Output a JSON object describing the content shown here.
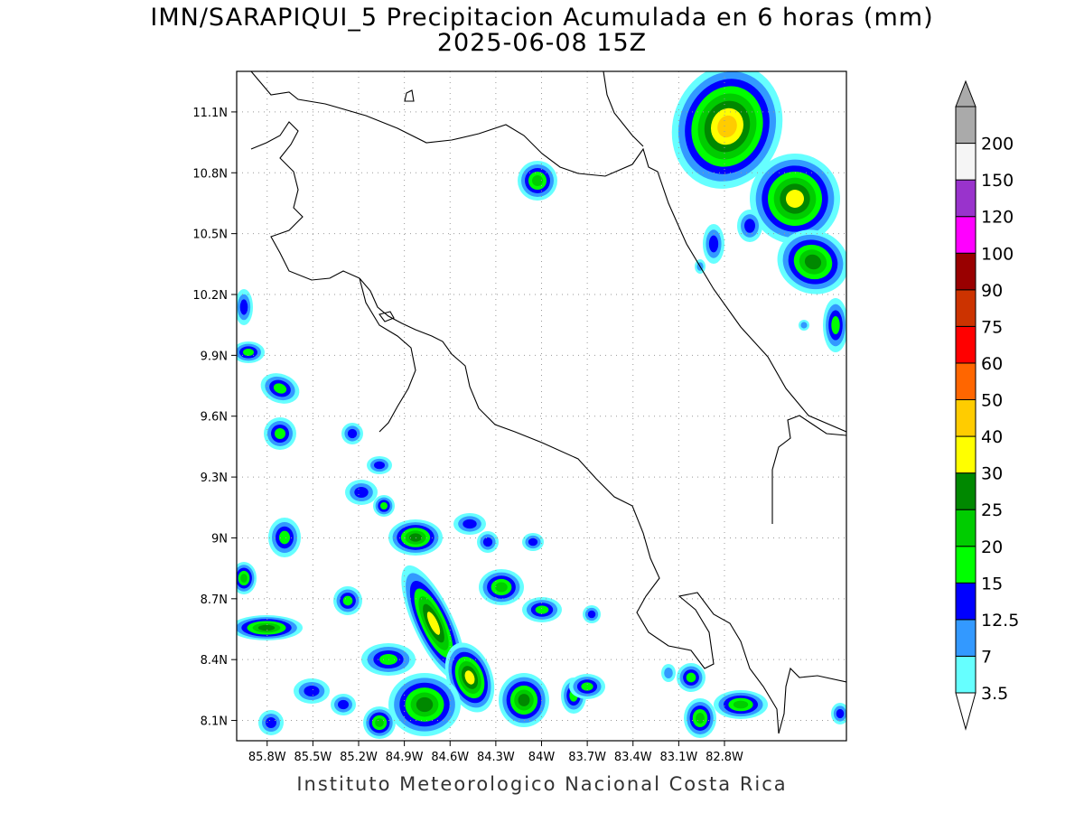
{
  "title": {
    "line1": "IMN/SARAPIQUI_5 Precipitacion Acumulada en 6 horas (mm)",
    "line2": "2025-06-08 15Z"
  },
  "footer": "Instituto Meteorologico Nacional Costa Rica",
  "map": {
    "lon_range": [
      -86.0,
      -82.0
    ],
    "lat_range": [
      8.0,
      11.3
    ],
    "lat_ticks": [
      {
        "value": 8.1,
        "label": "8.1N"
      },
      {
        "value": 8.4,
        "label": "8.4N"
      },
      {
        "value": 8.7,
        "label": "8.7N"
      },
      {
        "value": 9.0,
        "label": "9N"
      },
      {
        "value": 9.3,
        "label": "9.3N"
      },
      {
        "value": 9.6,
        "label": "9.6N"
      },
      {
        "value": 9.9,
        "label": "9.9N"
      },
      {
        "value": 10.2,
        "label": "10.2N"
      },
      {
        "value": 10.5,
        "label": "10.5N"
      },
      {
        "value": 10.8,
        "label": "10.8N"
      },
      {
        "value": 11.1,
        "label": "11.1N"
      }
    ],
    "lon_ticks": [
      {
        "value": -85.8,
        "label": "85.8W"
      },
      {
        "value": -85.5,
        "label": "85.5W"
      },
      {
        "value": -85.2,
        "label": "85.2W"
      },
      {
        "value": -84.9,
        "label": "84.9W"
      },
      {
        "value": -84.6,
        "label": "84.6W"
      },
      {
        "value": -84.3,
        "label": "84.3W"
      },
      {
        "value": -84.0,
        "label": "84W"
      },
      {
        "value": -83.7,
        "label": "83.7W"
      },
      {
        "value": -83.4,
        "label": "83.4W"
      },
      {
        "value": -83.1,
        "label": "83.1W"
      },
      {
        "value": -82.8,
        "label": "82.8W"
      }
    ],
    "grid": true
  },
  "colorbar": {
    "levels": [
      "3.5",
      "7",
      "12.5",
      "15",
      "20",
      "25",
      "30",
      "40",
      "50",
      "60",
      "75",
      "90",
      "100",
      "120",
      "150",
      "200"
    ],
    "colors": [
      "#66ffff",
      "#3399ff",
      "#0000ff",
      "#00ff00",
      "#00cc00",
      "#008800",
      "#ffff00",
      "#ffcc00",
      "#ff6600",
      "#ff0000",
      "#cc3300",
      "#990000",
      "#ff00ff",
      "#9933cc",
      "#f5f5f5",
      "#aaaaaa"
    ]
  }
}
